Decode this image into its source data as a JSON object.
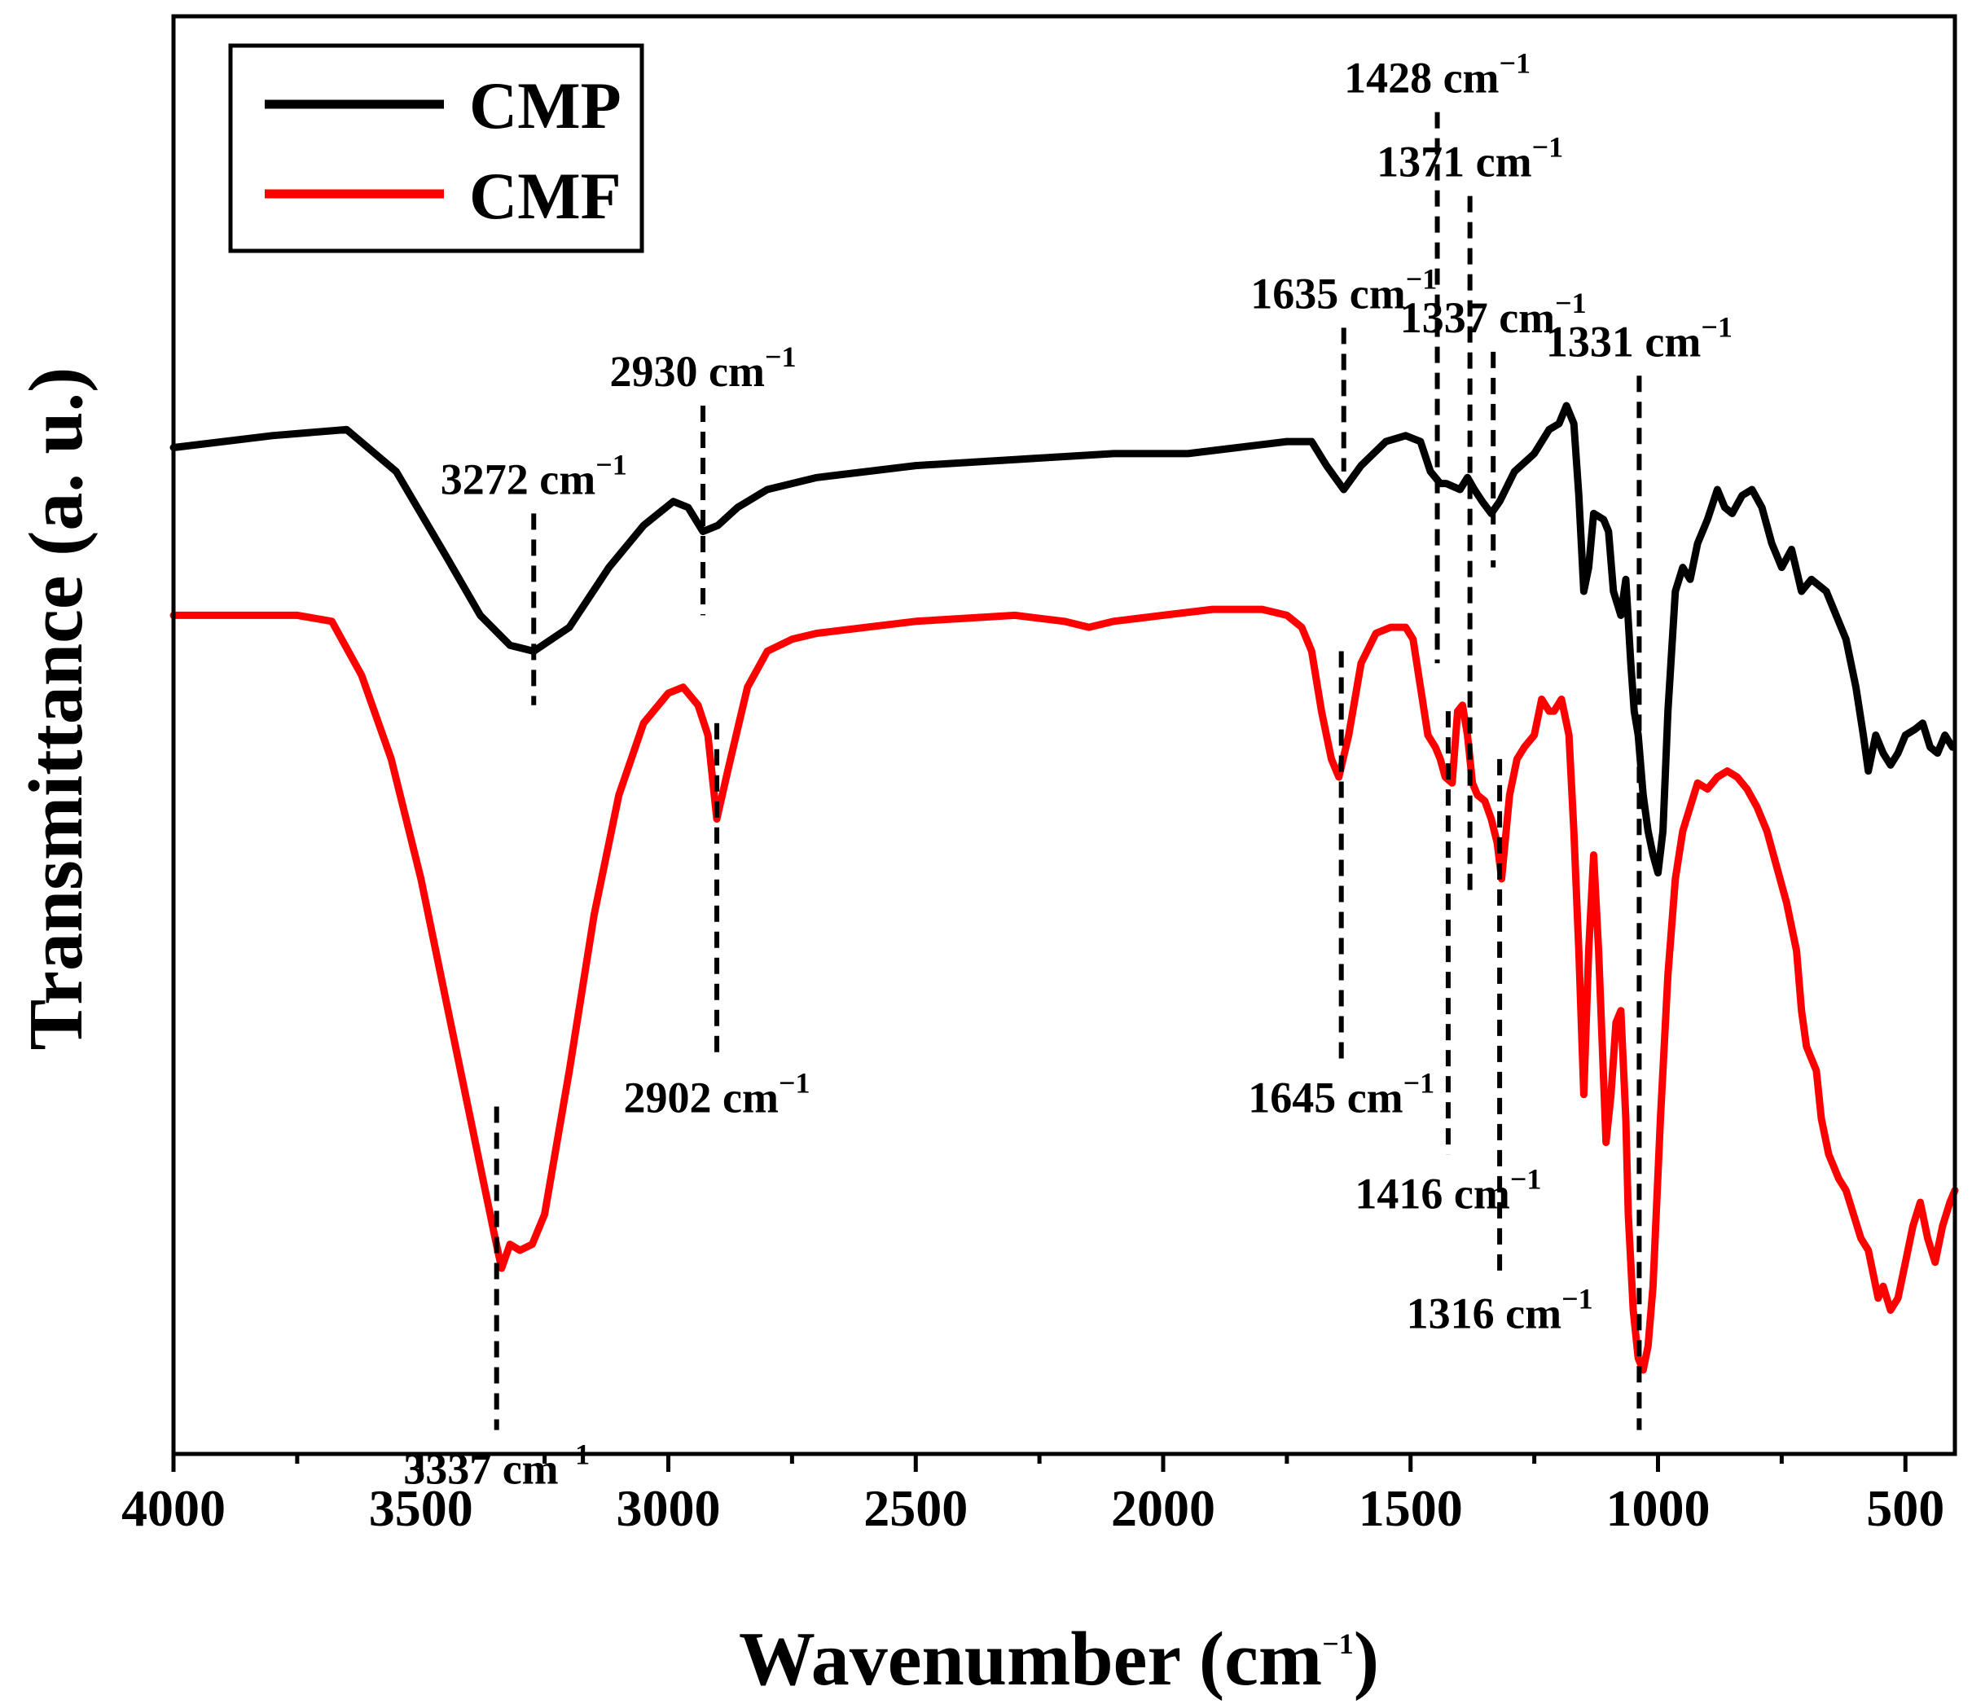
{
  "chart_data": {
    "type": "line",
    "title": "",
    "xlabel": "Wavenumber (cm",
    "xlabel_sup": "−1",
    "xlabel_close": ")",
    "ylabel": "Transmittance (a. u.)",
    "xlim": [
      4000,
      400
    ],
    "x_inverted": true,
    "y_ticks_labeled": false,
    "xticks": [
      4000,
      3500,
      3000,
      2500,
      2000,
      1500,
      1000,
      500
    ],
    "xtick_labels": [
      "4000",
      "3500",
      "3000",
      "2500",
      "2000",
      "1500",
      "1000",
      "500"
    ],
    "legend": {
      "position": "top-left",
      "entries": [
        "CMP",
        "CMF"
      ]
    },
    "series": [
      {
        "name": "CMP",
        "color": "#000000",
        "offset": 0,
        "points": [
          [
            4000,
            0.94
          ],
          [
            3800,
            0.95
          ],
          [
            3650,
            0.955
          ],
          [
            3550,
            0.92
          ],
          [
            3450,
            0.85
          ],
          [
            3380,
            0.8
          ],
          [
            3320,
            0.775
          ],
          [
            3272,
            0.77
          ],
          [
            3200,
            0.79
          ],
          [
            3120,
            0.84
          ],
          [
            3050,
            0.875
          ],
          [
            2990,
            0.895
          ],
          [
            2960,
            0.89
          ],
          [
            2930,
            0.87
          ],
          [
            2900,
            0.875
          ],
          [
            2860,
            0.89
          ],
          [
            2800,
            0.905
          ],
          [
            2700,
            0.915
          ],
          [
            2500,
            0.925
          ],
          [
            2300,
            0.93
          ],
          [
            2100,
            0.935
          ],
          [
            1950,
            0.935
          ],
          [
            1850,
            0.94
          ],
          [
            1750,
            0.945
          ],
          [
            1700,
            0.945
          ],
          [
            1670,
            0.925
          ],
          [
            1635,
            0.905
          ],
          [
            1600,
            0.925
          ],
          [
            1550,
            0.945
          ],
          [
            1510,
            0.95
          ],
          [
            1480,
            0.945
          ],
          [
            1460,
            0.92
          ],
          [
            1440,
            0.91
          ],
          [
            1428,
            0.91
          ],
          [
            1400,
            0.905
          ],
          [
            1385,
            0.915
          ],
          [
            1371,
            0.905
          ],
          [
            1355,
            0.895
          ],
          [
            1337,
            0.885
          ],
          [
            1320,
            0.895
          ],
          [
            1290,
            0.92
          ],
          [
            1250,
            0.935
          ],
          [
            1220,
            0.955
          ],
          [
            1200,
            0.96
          ],
          [
            1185,
            0.975
          ],
          [
            1170,
            0.96
          ],
          [
            1160,
            0.9
          ],
          [
            1150,
            0.82
          ],
          [
            1140,
            0.84
          ],
          [
            1130,
            0.885
          ],
          [
            1110,
            0.88
          ],
          [
            1100,
            0.87
          ],
          [
            1090,
            0.82
          ],
          [
            1075,
            0.8
          ],
          [
            1065,
            0.83
          ],
          [
            1055,
            0.76
          ],
          [
            1048,
            0.72
          ],
          [
            1040,
            0.7
          ],
          [
            1030,
            0.65
          ],
          [
            1020,
            0.62
          ],
          [
            1010,
            0.6
          ],
          [
            1000,
            0.585
          ],
          [
            990,
            0.62
          ],
          [
            980,
            0.72
          ],
          [
            965,
            0.82
          ],
          [
            950,
            0.84
          ],
          [
            935,
            0.83
          ],
          [
            920,
            0.86
          ],
          [
            900,
            0.88
          ],
          [
            880,
            0.905
          ],
          [
            865,
            0.89
          ],
          [
            850,
            0.885
          ],
          [
            830,
            0.9
          ],
          [
            810,
            0.905
          ],
          [
            790,
            0.89
          ],
          [
            770,
            0.86
          ],
          [
            750,
            0.84
          ],
          [
            730,
            0.855
          ],
          [
            710,
            0.82
          ],
          [
            690,
            0.83
          ],
          [
            660,
            0.82
          ],
          [
            640,
            0.8
          ],
          [
            620,
            0.78
          ],
          [
            600,
            0.74
          ],
          [
            585,
            0.7
          ],
          [
            575,
            0.67
          ],
          [
            560,
            0.7
          ],
          [
            545,
            0.685
          ],
          [
            530,
            0.675
          ],
          [
            515,
            0.685
          ],
          [
            500,
            0.7
          ],
          [
            480,
            0.705
          ],
          [
            465,
            0.71
          ],
          [
            450,
            0.69
          ],
          [
            435,
            0.685
          ],
          [
            420,
            0.7
          ],
          [
            405,
            0.69
          ]
        ]
      },
      {
        "name": "CMF",
        "color": "#ff0000",
        "offset": 0,
        "points": [
          [
            4000,
            0.8
          ],
          [
            3750,
            0.8
          ],
          [
            3680,
            0.795
          ],
          [
            3620,
            0.75
          ],
          [
            3560,
            0.68
          ],
          [
            3500,
            0.58
          ],
          [
            3450,
            0.48
          ],
          [
            3400,
            0.38
          ],
          [
            3370,
            0.32
          ],
          [
            3350,
            0.28
          ],
          [
            3337,
            0.255
          ],
          [
            3320,
            0.275
          ],
          [
            3300,
            0.27
          ],
          [
            3275,
            0.275
          ],
          [
            3250,
            0.3
          ],
          [
            3200,
            0.42
          ],
          [
            3150,
            0.55
          ],
          [
            3100,
            0.65
          ],
          [
            3050,
            0.71
          ],
          [
            3000,
            0.735
          ],
          [
            2970,
            0.74
          ],
          [
            2940,
            0.725
          ],
          [
            2920,
            0.7
          ],
          [
            2902,
            0.63
          ],
          [
            2880,
            0.67
          ],
          [
            2860,
            0.705
          ],
          [
            2840,
            0.74
          ],
          [
            2800,
            0.77
          ],
          [
            2750,
            0.78
          ],
          [
            2700,
            0.785
          ],
          [
            2500,
            0.795
          ],
          [
            2300,
            0.8
          ],
          [
            2200,
            0.795
          ],
          [
            2150,
            0.79
          ],
          [
            2100,
            0.795
          ],
          [
            2000,
            0.8
          ],
          [
            1900,
            0.805
          ],
          [
            1800,
            0.805
          ],
          [
            1750,
            0.8
          ],
          [
            1720,
            0.79
          ],
          [
            1700,
            0.77
          ],
          [
            1680,
            0.72
          ],
          [
            1660,
            0.68
          ],
          [
            1645,
            0.665
          ],
          [
            1625,
            0.7
          ],
          [
            1600,
            0.76
          ],
          [
            1570,
            0.785
          ],
          [
            1540,
            0.79
          ],
          [
            1510,
            0.79
          ],
          [
            1495,
            0.78
          ],
          [
            1480,
            0.74
          ],
          [
            1465,
            0.7
          ],
          [
            1450,
            0.69
          ],
          [
            1440,
            0.68
          ],
          [
            1430,
            0.665
          ],
          [
            1416,
            0.66
          ],
          [
            1405,
            0.72
          ],
          [
            1395,
            0.725
          ],
          [
            1385,
            0.7
          ],
          [
            1375,
            0.66
          ],
          [
            1365,
            0.65
          ],
          [
            1350,
            0.645
          ],
          [
            1337,
            0.63
          ],
          [
            1325,
            0.61
          ],
          [
            1316,
            0.58
          ],
          [
            1300,
            0.65
          ],
          [
            1285,
            0.68
          ],
          [
            1270,
            0.69
          ],
          [
            1250,
            0.7
          ],
          [
            1235,
            0.73
          ],
          [
            1220,
            0.72
          ],
          [
            1210,
            0.72
          ],
          [
            1195,
            0.73
          ],
          [
            1180,
            0.7
          ],
          [
            1170,
            0.62
          ],
          [
            1160,
            0.52
          ],
          [
            1150,
            0.4
          ],
          [
            1140,
            0.52
          ],
          [
            1130,
            0.6
          ],
          [
            1120,
            0.52
          ],
          [
            1105,
            0.36
          ],
          [
            1095,
            0.4
          ],
          [
            1085,
            0.46
          ],
          [
            1075,
            0.47
          ],
          [
            1065,
            0.38
          ],
          [
            1060,
            0.3
          ],
          [
            1050,
            0.22
          ],
          [
            1040,
            0.18
          ],
          [
            1030,
            0.17
          ],
          [
            1020,
            0.19
          ],
          [
            1010,
            0.24
          ],
          [
            995,
            0.38
          ],
          [
            980,
            0.5
          ],
          [
            965,
            0.58
          ],
          [
            950,
            0.62
          ],
          [
            935,
            0.64
          ],
          [
            920,
            0.66
          ],
          [
            900,
            0.655
          ],
          [
            880,
            0.665
          ],
          [
            860,
            0.67
          ],
          [
            840,
            0.665
          ],
          [
            820,
            0.655
          ],
          [
            800,
            0.64
          ],
          [
            780,
            0.62
          ],
          [
            760,
            0.59
          ],
          [
            740,
            0.56
          ],
          [
            720,
            0.52
          ],
          [
            710,
            0.47
          ],
          [
            700,
            0.44
          ],
          [
            690,
            0.43
          ],
          [
            680,
            0.42
          ],
          [
            670,
            0.38
          ],
          [
            655,
            0.35
          ],
          [
            645,
            0.34
          ],
          [
            635,
            0.33
          ],
          [
            620,
            0.32
          ],
          [
            605,
            0.3
          ],
          [
            590,
            0.28
          ],
          [
            575,
            0.27
          ],
          [
            565,
            0.25
          ],
          [
            555,
            0.23
          ],
          [
            545,
            0.24
          ],
          [
            530,
            0.22
          ],
          [
            515,
            0.23
          ],
          [
            500,
            0.26
          ],
          [
            485,
            0.29
          ],
          [
            470,
            0.31
          ],
          [
            455,
            0.28
          ],
          [
            440,
            0.26
          ],
          [
            425,
            0.29
          ],
          [
            410,
            0.31
          ],
          [
            400,
            0.32
          ]
        ]
      }
    ],
    "annotations": [
      {
        "label": "3272 cm",
        "x": 3272,
        "y_top": 0.885,
        "y_bottom": 0.725,
        "text_pos": "above"
      },
      {
        "label": "2930 cm",
        "x": 2930,
        "y_top": 0.975,
        "y_bottom": 0.8,
        "text_pos": "above"
      },
      {
        "label": "1635 cm",
        "x": 1635,
        "y_top": 1.04,
        "y_bottom": 0.92,
        "text_pos": "above"
      },
      {
        "label": "1428 cm",
        "x": 1446,
        "y_top": 1.22,
        "y_bottom": 0.76,
        "text_pos": "above"
      },
      {
        "label": "1371 cm",
        "x": 1380,
        "y_top": 1.15,
        "y_bottom": 0.57,
        "text_pos": "above"
      },
      {
        "label": "1337 cm",
        "x": 1333,
        "y_top": 1.02,
        "y_bottom": 0.84,
        "text_pos": "above"
      },
      {
        "label": "1331 cm",
        "x": 1038,
        "y_top": 1.0,
        "y_bottom": 0.12,
        "text_pos": "above"
      },
      {
        "label": "3337 cm",
        "x": 3347,
        "y_top": 0.39,
        "y_bottom": 0.12,
        "text_pos": "below"
      },
      {
        "label": "2902 cm",
        "x": 2902,
        "y_top": 0.71,
        "y_bottom": 0.43,
        "text_pos": "below"
      },
      {
        "label": "1645 cm",
        "x": 1640,
        "y_top": 0.77,
        "y_bottom": 0.43,
        "text_pos": "below"
      },
      {
        "label": "1416 cm",
        "x": 1424,
        "y_top": 0.72,
        "y_bottom": 0.35,
        "text_pos": "below"
      },
      {
        "label": "1316 cm",
        "x": 1320,
        "y_top": 0.68,
        "y_bottom": 0.25,
        "text_pos": "below"
      }
    ],
    "annotation_sup": "−1"
  }
}
